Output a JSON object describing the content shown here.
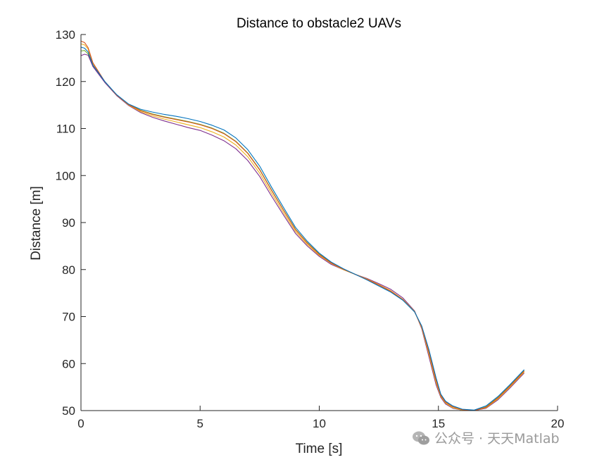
{
  "chart_data": {
    "type": "line",
    "title": "Distance to obstacle2 UAVs",
    "xlabel": "Time [s]",
    "ylabel": "Distance [m]",
    "xlim": [
      0,
      20
    ],
    "ylim": [
      50,
      130
    ],
    "xticks": [
      0,
      5,
      10,
      15,
      20
    ],
    "yticks": [
      50,
      60,
      70,
      80,
      90,
      100,
      110,
      120,
      130
    ],
    "grid": false,
    "legend": "none",
    "box": "left-bottom axes only",
    "series": [
      {
        "color": "#0072BD",
        "x": [
          0,
          0.15,
          0.3,
          0.5,
          1,
          1.5,
          2,
          2.5,
          3,
          3.5,
          4,
          4.5,
          5,
          5.5,
          6,
          6.5,
          7,
          7.5,
          8,
          8.5,
          9,
          9.5,
          10,
          10.5,
          11,
          11.5,
          12,
          12.5,
          13,
          13.5,
          14,
          14.3,
          14.6,
          14.9,
          15.1,
          15.3,
          15.6,
          16,
          16.5,
          17,
          17.5,
          18,
          18.6
        ],
        "y": [
          127.3,
          127.1,
          126.3,
          123.5,
          120.0,
          117.2,
          115.2,
          114.1,
          113.5,
          113.0,
          112.6,
          112.1,
          111.5,
          110.7,
          109.7,
          108.0,
          105.5,
          102.0,
          97.5,
          93.2,
          89.0,
          86.0,
          83.5,
          81.6,
          80.2,
          79.0,
          77.8,
          76.5,
          75.2,
          73.5,
          71.0,
          68.0,
          63.0,
          57.0,
          53.5,
          52.0,
          51.0,
          50.3,
          50.1,
          51.0,
          53.0,
          55.5,
          58.7
        ]
      },
      {
        "color": "#D95319",
        "x": [
          0,
          0.15,
          0.3,
          0.5,
          1,
          1.5,
          2,
          2.5,
          3,
          3.5,
          4,
          4.5,
          5,
          5.5,
          6,
          6.5,
          7,
          7.5,
          8,
          8.5,
          9,
          9.5,
          10,
          10.5,
          11,
          11.5,
          12,
          12.5,
          13,
          13.5,
          14,
          14.3,
          14.6,
          14.9,
          15.1,
          15.3,
          15.6,
          16,
          16.5,
          17,
          17.5,
          18,
          18.6
        ],
        "y": [
          128.6,
          128.3,
          127.2,
          124.0,
          120.0,
          117.1,
          115.1,
          113.8,
          113.0,
          112.4,
          111.9,
          111.4,
          110.8,
          110.0,
          108.9,
          107.2,
          104.7,
          101.2,
          96.8,
          92.6,
          88.5,
          85.6,
          83.2,
          81.4,
          80.1,
          79.0,
          77.9,
          76.7,
          75.4,
          73.6,
          71.0,
          67.8,
          62.5,
          56.5,
          53.2,
          51.8,
          50.8,
          50.2,
          50.0,
          50.7,
          52.7,
          55.2,
          58.4
        ]
      },
      {
        "color": "#EDB120",
        "x": [
          0,
          0.15,
          0.3,
          0.5,
          1,
          1.5,
          2,
          2.5,
          3,
          3.5,
          4,
          4.5,
          5,
          5.5,
          6,
          6.5,
          7,
          7.5,
          8,
          8.5,
          9,
          9.5,
          10,
          10.5,
          11,
          11.5,
          12,
          12.5,
          13,
          13.5,
          14,
          14.3,
          14.6,
          14.9,
          15.1,
          15.3,
          15.6,
          16,
          16.5,
          17,
          17.5,
          18,
          18.6
        ],
        "y": [
          128.0,
          127.8,
          126.9,
          123.8,
          120.0,
          117.1,
          115.0,
          113.6,
          112.7,
          112.0,
          111.4,
          110.8,
          110.2,
          109.3,
          108.2,
          106.5,
          104.0,
          100.5,
          96.2,
          92.1,
          88.1,
          85.3,
          83.0,
          81.3,
          80.0,
          79.0,
          78.0,
          76.8,
          75.5,
          73.7,
          71.1,
          67.6,
          62.0,
          56.0,
          53.0,
          51.6,
          50.6,
          50.1,
          50.0,
          50.6,
          52.5,
          55.0,
          58.2
        ]
      },
      {
        "color": "#7E2F8E",
        "x": [
          0,
          0.15,
          0.3,
          0.5,
          1,
          1.5,
          2,
          2.5,
          3,
          3.5,
          4,
          4.5,
          5,
          5.5,
          6,
          6.5,
          7,
          7.5,
          8,
          8.5,
          9,
          9.5,
          10,
          10.5,
          11,
          11.5,
          12,
          12.5,
          13,
          13.5,
          14,
          14.3,
          14.6,
          14.9,
          15.1,
          15.3,
          15.6,
          16,
          16.5,
          17,
          17.5,
          18,
          18.6
        ],
        "y": [
          125.5,
          125.8,
          125.6,
          123.2,
          119.8,
          117.0,
          114.9,
          113.4,
          112.4,
          111.6,
          110.9,
          110.2,
          109.6,
          108.6,
          107.4,
          105.7,
          103.2,
          99.8,
          95.6,
          91.6,
          87.7,
          85.0,
          82.8,
          81.1,
          80.0,
          79.0,
          78.1,
          77.0,
          75.8,
          74.0,
          71.2,
          67.4,
          61.5,
          55.5,
          52.8,
          51.4,
          50.5,
          50.1,
          50.0,
          50.5,
          52.3,
          54.8,
          58.0
        ]
      },
      {
        "color": "#77AC30",
        "x": [
          0,
          0.15,
          0.3,
          0.5,
          1,
          1.5,
          2,
          2.5,
          3,
          3.5,
          4,
          4.5,
          5,
          5.5,
          6,
          6.5,
          7,
          7.5,
          8,
          8.5,
          9,
          9.5,
          10,
          10.5,
          11,
          11.5,
          12,
          12.5,
          13,
          13.5,
          14,
          14.3,
          14.6,
          14.9,
          15.1,
          15.3,
          15.6,
          16,
          16.5,
          17,
          17.5,
          18,
          18.6
        ],
        "y": [
          126.5,
          126.6,
          125.9,
          123.4,
          119.9,
          117.1,
          115.1,
          113.9,
          113.1,
          112.5,
          112.0,
          111.5,
          110.9,
          110.1,
          109.0,
          107.3,
          104.8,
          101.3,
          96.9,
          92.7,
          88.6,
          85.7,
          83.3,
          81.5,
          80.1,
          79.0,
          77.9,
          76.7,
          75.4,
          73.6,
          71.0,
          67.8,
          62.6,
          56.6,
          53.3,
          51.8,
          50.8,
          50.2,
          50.0,
          50.8,
          52.8,
          55.3,
          58.5
        ]
      }
    ]
  },
  "watermark": {
    "icon": "wechat-icon",
    "text": "公众号 · 天天Matlab"
  }
}
